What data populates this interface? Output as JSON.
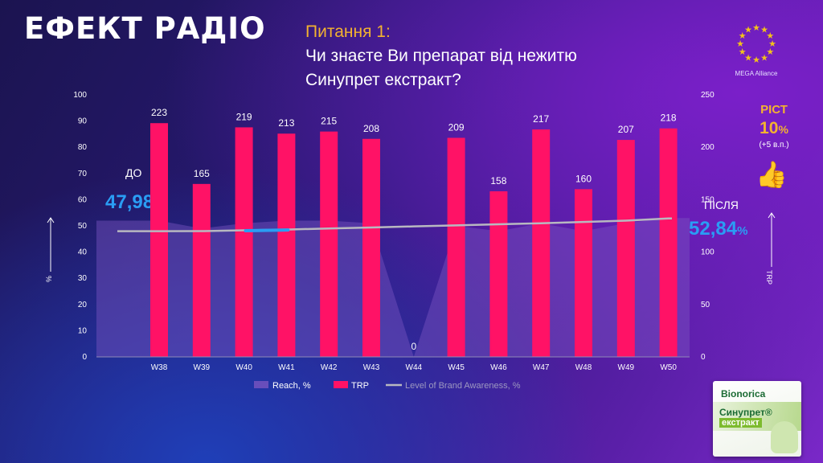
{
  "brand": "ЕФЕКТ РАДІО",
  "question": {
    "heading": "Питання 1:",
    "line1": "Чи знаєте Ви препарат від нежитю",
    "line2": "Синупрет екстракт?"
  },
  "logo": {
    "caption": "MEGA Alliance",
    "icon": "eu-stars-icon"
  },
  "growth": {
    "label": "РІСТ",
    "value": "10",
    "unit": "%",
    "note": "(+5 в.п.)",
    "icon": "thumbs-up-icon"
  },
  "before": {
    "label": "ДО",
    "value": "47,98",
    "unit": "%"
  },
  "after": {
    "label": "ПІСЛЯ",
    "value": "52,84",
    "unit": "%"
  },
  "product": {
    "brand": "Bionorica",
    "name": "Синупрет®",
    "variant": "екстракт"
  },
  "colors": {
    "trp": "#ff1266",
    "reach": "#7a55c0",
    "awareness": "#b8b8c0",
    "accent_blue": "#2a9df4",
    "accent_orange": "#f3b230"
  },
  "chart_data": {
    "type": "bar",
    "categories": [
      "W38",
      "W39",
      "W40",
      "W41",
      "W42",
      "W43",
      "W44",
      "W45",
      "W46",
      "W47",
      "W48",
      "W49",
      "W50"
    ],
    "series": [
      {
        "name": "TRP",
        "type": "bar",
        "axis": "right",
        "values": [
          223,
          165,
          219,
          213,
          215,
          208,
          0,
          209,
          158,
          217,
          160,
          207,
          218
        ]
      },
      {
        "name": "Reach, %",
        "type": "area",
        "axis": "left",
        "values": [
          52,
          49,
          51,
          52,
          52,
          51,
          0,
          50,
          48,
          51,
          48,
          51,
          53
        ]
      },
      {
        "name": "Level of Brand Awareness, %",
        "type": "line",
        "axis": "left",
        "values": [
          47.98,
          48.0,
          48.3,
          48.6,
          49.0,
          49.4,
          49.8,
          50.2,
          50.6,
          51.0,
          51.5,
          52.0,
          52.84
        ]
      }
    ],
    "y_left": {
      "range": [
        0,
        100
      ],
      "ticks": [
        0,
        10,
        20,
        30,
        40,
        50,
        60,
        70,
        80,
        90,
        100
      ],
      "label": "%"
    },
    "y_right": {
      "range": [
        0,
        250
      ],
      "ticks": [
        0,
        50,
        100,
        150,
        200,
        250
      ],
      "label": "TRP"
    },
    "legend": {
      "position": "bottom",
      "items": [
        "Reach, %",
        "TRP",
        "Level of Brand Awareness, %"
      ]
    },
    "grid": false
  }
}
